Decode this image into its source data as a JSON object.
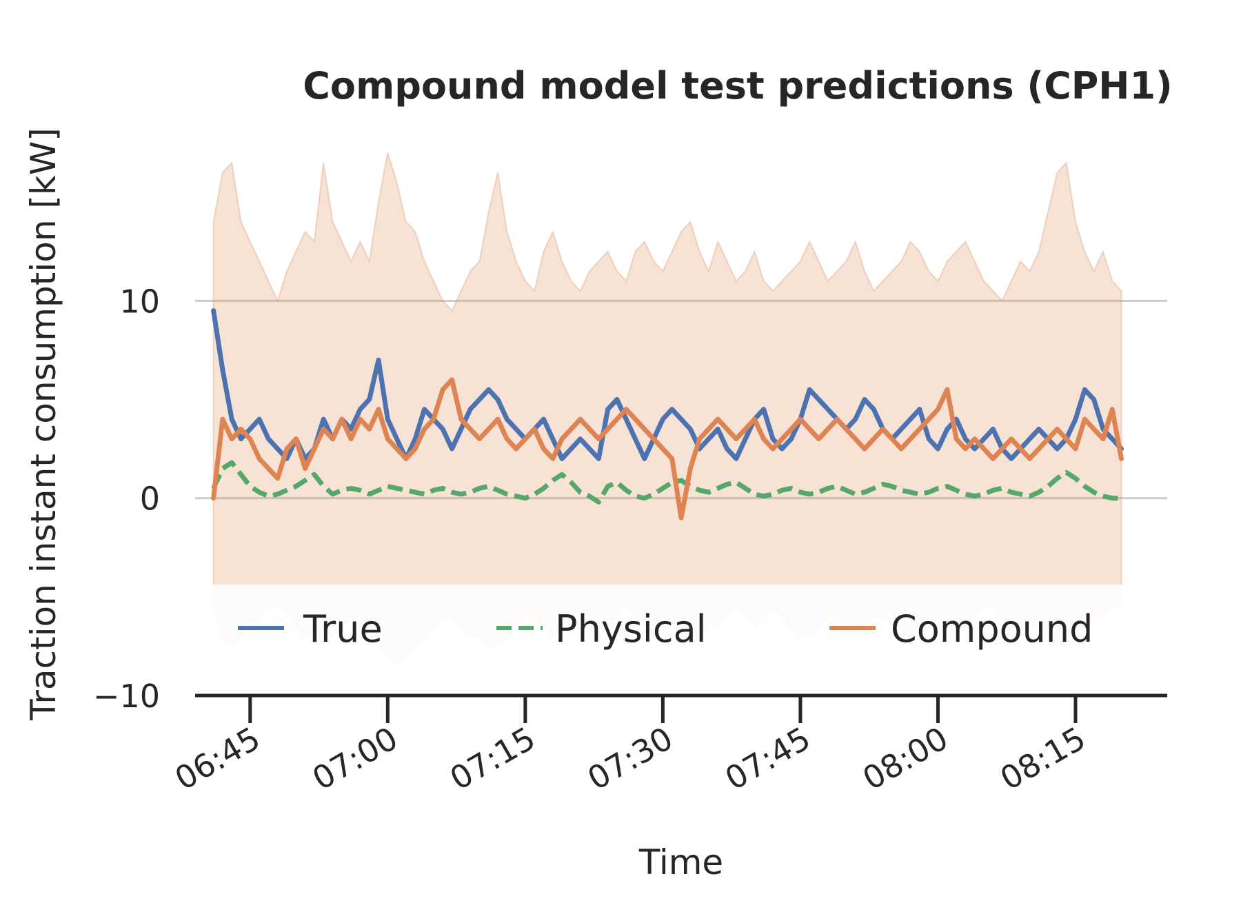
{
  "chart_data": {
    "type": "line",
    "title": "Compound model test predictions (CPH1)",
    "xlabel": "Time",
    "ylabel": "Traction instant consumption [kW]",
    "xlim": [
      "06:39",
      "08:25"
    ],
    "ylim": [
      -10,
      20
    ],
    "x_ticks": [
      "06:45",
      "07:00",
      "07:15",
      "07:30",
      "07:45",
      "08:00",
      "08:15"
    ],
    "y_ticks": [
      -10,
      0,
      10
    ],
    "grid": true,
    "legend": {
      "placement": "bottom",
      "entries": [
        "True",
        "Physical",
        "Compound"
      ]
    },
    "colors": {
      "True": "#4c72b0",
      "Physical": "#55a868",
      "Compound": "#dd8452",
      "band": "#dd8452",
      "grid": "#cccccc",
      "axis": "#262626"
    },
    "x": [
      "06:41",
      "06:42",
      "06:43",
      "06:44",
      "06:45",
      "06:46",
      "06:47",
      "06:48",
      "06:49",
      "06:50",
      "06:51",
      "06:52",
      "06:53",
      "06:54",
      "06:55",
      "06:56",
      "06:57",
      "06:58",
      "06:59",
      "07:00",
      "07:01",
      "07:02",
      "07:03",
      "07:04",
      "07:05",
      "07:06",
      "07:07",
      "07:08",
      "07:09",
      "07:10",
      "07:11",
      "07:12",
      "07:13",
      "07:14",
      "07:15",
      "07:16",
      "07:17",
      "07:18",
      "07:19",
      "07:20",
      "07:21",
      "07:22",
      "07:23",
      "07:24",
      "07:25",
      "07:26",
      "07:27",
      "07:28",
      "07:29",
      "07:30",
      "07:31",
      "07:32",
      "07:33",
      "07:34",
      "07:35",
      "07:36",
      "07:37",
      "07:38",
      "07:39",
      "07:40",
      "07:41",
      "07:42",
      "07:43",
      "07:44",
      "07:45",
      "07:46",
      "07:47",
      "07:48",
      "07:49",
      "07:50",
      "07:51",
      "07:52",
      "07:53",
      "07:54",
      "07:55",
      "07:56",
      "07:57",
      "07:58",
      "07:59",
      "08:00",
      "08:01",
      "08:02",
      "08:03",
      "08:04",
      "08:05",
      "08:06",
      "08:07",
      "08:08",
      "08:09",
      "08:10",
      "08:11",
      "08:12",
      "08:13",
      "08:14",
      "08:15",
      "08:16",
      "08:17",
      "08:18",
      "08:19",
      "08:20"
    ],
    "series": [
      {
        "name": "True",
        "style": "solid",
        "values": [
          9.5,
          6.5,
          4.0,
          3.0,
          3.5,
          4.0,
          3.0,
          2.5,
          2.0,
          3.0,
          2.0,
          2.5,
          4.0,
          3.0,
          4.0,
          3.5,
          4.5,
          5.0,
          7.0,
          4.0,
          3.0,
          2.0,
          3.0,
          4.5,
          4.0,
          3.5,
          2.5,
          3.5,
          4.5,
          5.0,
          5.5,
          5.0,
          4.0,
          3.5,
          3.0,
          3.5,
          4.0,
          3.0,
          2.0,
          2.5,
          3.0,
          2.5,
          2.0,
          4.5,
          5.0,
          4.0,
          3.0,
          2.0,
          3.0,
          4.0,
          4.5,
          4.0,
          3.5,
          2.5,
          3.0,
          3.5,
          2.5,
          2.0,
          3.0,
          4.0,
          4.5,
          3.0,
          2.5,
          3.0,
          4.0,
          5.5,
          5.0,
          4.5,
          4.0,
          3.5,
          4.0,
          5.0,
          4.5,
          3.5,
          3.0,
          3.5,
          4.0,
          4.5,
          3.0,
          2.5,
          3.5,
          4.0,
          3.0,
          2.5,
          3.0,
          3.5,
          2.5,
          2.0,
          2.5,
          3.0,
          3.5,
          3.0,
          2.5,
          3.0,
          4.0,
          5.5,
          5.0,
          3.5,
          3.0,
          2.5
        ]
      },
      {
        "name": "Physical",
        "style": "dashed",
        "values": [
          0.5,
          1.5,
          1.8,
          1.2,
          0.6,
          0.3,
          0.1,
          0.2,
          0.4,
          0.6,
          0.9,
          1.2,
          0.6,
          0.2,
          0.4,
          0.5,
          0.4,
          0.2,
          0.4,
          0.6,
          0.5,
          0.4,
          0.3,
          0.2,
          0.4,
          0.5,
          0.3,
          0.2,
          0.3,
          0.5,
          0.6,
          0.4,
          0.2,
          0.1,
          0.0,
          0.2,
          0.5,
          0.9,
          1.2,
          0.8,
          0.3,
          0.1,
          -0.2,
          0.6,
          0.8,
          0.4,
          0.1,
          0.0,
          0.2,
          0.5,
          0.8,
          0.9,
          0.6,
          0.4,
          0.3,
          0.5,
          0.7,
          0.8,
          0.5,
          0.2,
          0.1,
          0.2,
          0.4,
          0.5,
          0.3,
          0.2,
          0.3,
          0.5,
          0.6,
          0.4,
          0.2,
          0.3,
          0.5,
          0.7,
          0.6,
          0.4,
          0.3,
          0.2,
          0.3,
          0.5,
          0.6,
          0.4,
          0.2,
          0.1,
          0.2,
          0.4,
          0.5,
          0.3,
          0.2,
          0.1,
          0.3,
          0.6,
          1.0,
          1.3,
          1.0,
          0.6,
          0.3,
          0.1,
          0.0,
          0.0
        ]
      },
      {
        "name": "Compound",
        "style": "solid",
        "values": [
          0.0,
          4.0,
          3.0,
          3.5,
          3.0,
          2.0,
          1.5,
          1.0,
          2.5,
          3.0,
          1.5,
          2.5,
          3.5,
          3.0,
          4.0,
          3.0,
          4.0,
          3.5,
          4.5,
          3.0,
          2.5,
          2.0,
          2.5,
          3.5,
          4.0,
          5.5,
          6.0,
          4.0,
          3.5,
          3.0,
          3.5,
          4.0,
          3.0,
          2.5,
          3.0,
          3.5,
          2.5,
          2.0,
          3.0,
          3.5,
          4.0,
          3.5,
          3.0,
          3.5,
          4.0,
          4.5,
          4.0,
          3.5,
          3.0,
          2.5,
          2.0,
          -1.0,
          1.5,
          3.0,
          3.5,
          4.0,
          3.5,
          3.0,
          3.5,
          4.0,
          3.0,
          2.5,
          3.0,
          3.5,
          4.0,
          3.5,
          3.0,
          3.5,
          4.0,
          3.5,
          3.0,
          2.5,
          3.0,
          3.5,
          3.0,
          2.5,
          3.0,
          3.5,
          4.0,
          4.5,
          5.5,
          3.0,
          2.5,
          3.0,
          2.5,
          2.0,
          2.5,
          3.0,
          2.5,
          2.0,
          2.5,
          3.0,
          3.5,
          3.0,
          2.5,
          4.0,
          3.5,
          3.0,
          4.5,
          2.0
        ]
      }
    ],
    "band": {
      "series": "Compound",
      "upper": [
        14.0,
        16.5,
        17.0,
        14.0,
        13.0,
        12.0,
        11.0,
        10.0,
        11.5,
        12.5,
        13.5,
        13.0,
        17.0,
        14.0,
        13.0,
        12.0,
        13.0,
        12.0,
        15.0,
        17.5,
        16.0,
        14.0,
        13.5,
        12.0,
        11.0,
        10.0,
        9.5,
        10.5,
        11.5,
        12.0,
        14.5,
        16.5,
        13.5,
        12.0,
        11.0,
        10.5,
        12.5,
        13.5,
        12.0,
        11.0,
        10.5,
        11.5,
        12.0,
        12.5,
        11.5,
        11.0,
        12.5,
        13.0,
        12.0,
        11.5,
        12.5,
        13.5,
        14.0,
        12.5,
        11.5,
        13.0,
        12.0,
        11.0,
        11.5,
        12.5,
        11.0,
        10.5,
        11.0,
        11.5,
        12.0,
        13.0,
        12.0,
        11.0,
        11.5,
        12.0,
        13.0,
        11.5,
        10.5,
        11.0,
        11.5,
        12.0,
        13.0,
        12.5,
        11.5,
        11.0,
        12.0,
        12.5,
        13.0,
        12.0,
        11.0,
        10.5,
        10.0,
        11.0,
        12.0,
        11.5,
        12.5,
        14.5,
        16.5,
        17.0,
        14.0,
        12.5,
        11.5,
        12.5,
        11.0,
        10.5
      ],
      "lower": [
        -5.5,
        -7.0,
        -7.5,
        -7.0,
        -6.5,
        -6.0,
        -5.5,
        -5.5,
        -6.0,
        -6.5,
        -7.0,
        -6.5,
        -7.5,
        -7.0,
        -6.5,
        -6.0,
        -6.5,
        -7.0,
        -7.5,
        -8.0,
        -8.5,
        -8.0,
        -7.5,
        -7.0,
        -6.5,
        -6.0,
        -6.0,
        -6.5,
        -7.0,
        -7.0,
        -7.5,
        -7.5,
        -7.0,
        -6.5,
        -6.0,
        -6.0,
        -6.5,
        -7.0,
        -6.5,
        -6.0,
        -5.5,
        -6.0,
        -6.5,
        -6.5,
        -6.0,
        -5.5,
        -6.0,
        -6.5,
        -7.0,
        -6.5,
        -6.0,
        -7.5,
        -7.5,
        -7.0,
        -6.5,
        -6.5,
        -6.0,
        -5.5,
        -6.0,
        -6.5,
        -6.0,
        -5.5,
        -6.0,
        -6.5,
        -7.0,
        -7.0,
        -6.5,
        -6.0,
        -6.0,
        -6.5,
        -7.0,
        -6.5,
        -6.0,
        -6.0,
        -6.5,
        -7.0,
        -7.0,
        -6.5,
        -6.0,
        -6.0,
        -6.5,
        -7.0,
        -6.5,
        -6.0,
        -5.5,
        -5.5,
        -6.0,
        -6.5,
        -7.0,
        -6.5,
        -6.5,
        -7.0,
        -7.5,
        -7.5,
        -7.0,
        -6.5,
        -6.0,
        -6.0,
        -5.5,
        -5.5
      ]
    }
  }
}
